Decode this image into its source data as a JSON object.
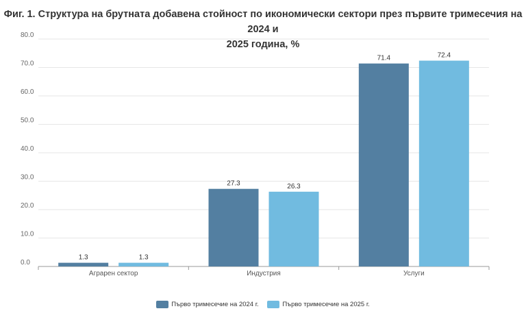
{
  "title_lines": [
    "Фиг. 1. Структура на брутната добавена стойност по икономически сектори през първите тримесечия на 2024 и",
    "2025 година, %"
  ],
  "chart_data": {
    "type": "bar",
    "title": "Фиг. 1. Структура на брутната добавена стойност по икономически сектори през първите тримесечия на 2024 и 2025 година, %",
    "categories": [
      "Аграрен сектор",
      "Индустрия",
      "Услуги"
    ],
    "series": [
      {
        "name": "Първо тримесечие на 2024 г.",
        "values": [
          1.3,
          27.3,
          71.4
        ],
        "labels": [
          "1.3",
          "27.3",
          "71.4"
        ],
        "color": "#537fa1"
      },
      {
        "name": "Първо тримесечие на 2025 г.",
        "values": [
          1.3,
          26.3,
          72.4
        ],
        "labels": [
          "1.3",
          "26.3",
          "72.4"
        ],
        "color": "#71bbe0"
      }
    ],
    "ylim": [
      0,
      80
    ],
    "yticks": [
      "0.0",
      "10.0",
      "20.0",
      "30.0",
      "40.0",
      "50.0",
      "60.0",
      "70.0",
      "80.0"
    ],
    "grid": true,
    "legend": "bottom"
  }
}
